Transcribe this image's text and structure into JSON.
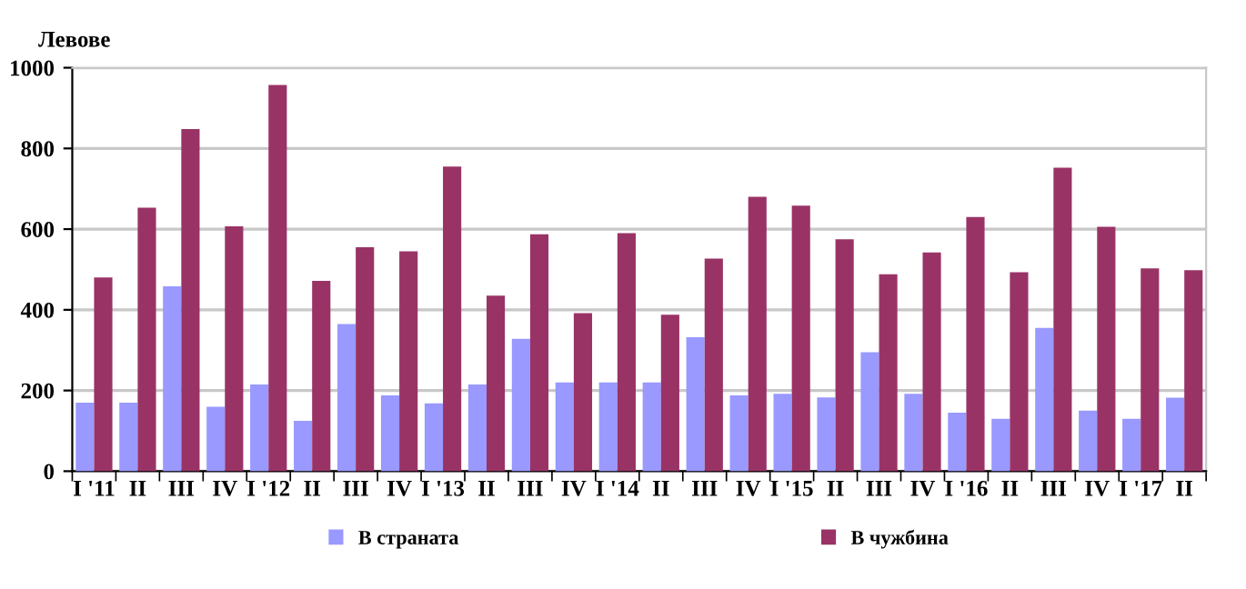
{
  "chart_data": {
    "type": "bar",
    "ylabel": "Левове",
    "categories": [
      "I '11",
      "II",
      "III",
      "IV",
      "I '12",
      "II",
      "III",
      "IV",
      "I '13",
      "II",
      "III",
      "IV",
      "I '14",
      "II",
      "III",
      "IV",
      "I '15",
      "II",
      "III",
      "IV",
      "I '16",
      "II",
      "III",
      "IV",
      "I '17",
      "II"
    ],
    "series": [
      {
        "name": "В страната",
        "color": "#9999ff",
        "values": [
          170,
          170,
          458,
          160,
          215,
          125,
          365,
          188,
          168,
          215,
          328,
          220,
          220,
          220,
          332,
          188,
          192,
          183,
          295,
          192,
          145,
          130,
          355,
          150,
          130,
          182
        ]
      },
      {
        "name": "В чужбина",
        "color": "#993366",
        "values": [
          480,
          653,
          848,
          607,
          957,
          472,
          555,
          545,
          755,
          435,
          587,
          392,
          590,
          388,
          527,
          680,
          658,
          575,
          488,
          542,
          630,
          493,
          752,
          606,
          503,
          498
        ]
      }
    ],
    "ylim": [
      0,
      1000
    ],
    "yticks": [
      0,
      200,
      400,
      600,
      800,
      1000
    ],
    "grid": "y",
    "legend": "bottom"
  }
}
